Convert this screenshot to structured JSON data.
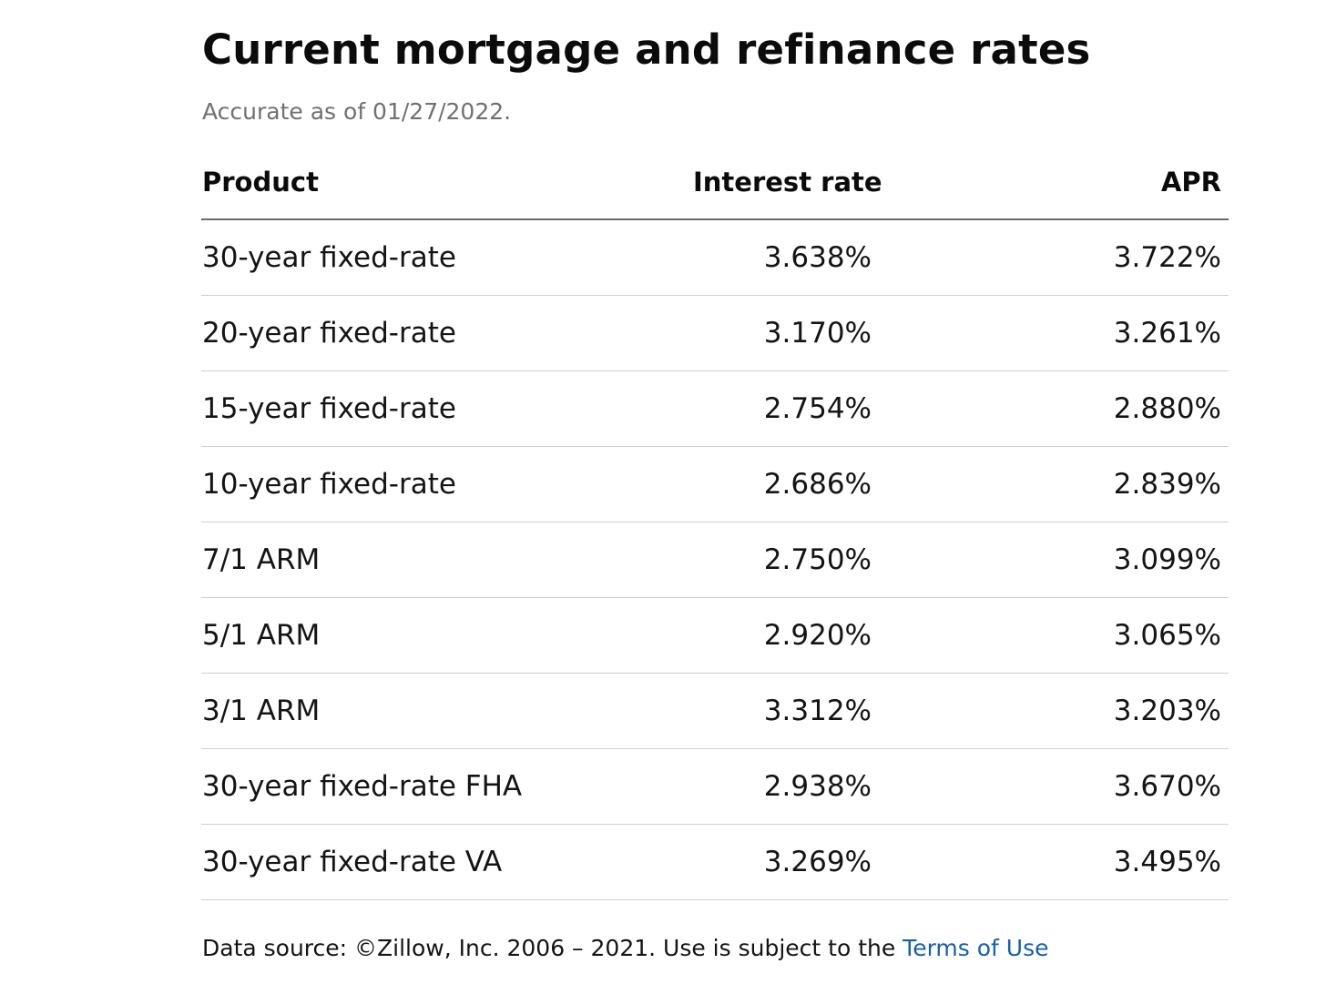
{
  "page": {
    "title": "Current mortgage and refinance rates",
    "subtitle": "Accurate as of 01/27/2022."
  },
  "table": {
    "headers": {
      "product": "Product",
      "interest_rate": "Interest rate",
      "apr": "APR"
    },
    "rows": [
      {
        "product": "30-year fixed-rate",
        "interest_rate": "3.638%",
        "apr": "3.722%"
      },
      {
        "product": "20-year fixed-rate",
        "interest_rate": "3.170%",
        "apr": "3.261%"
      },
      {
        "product": "15-year fixed-rate",
        "interest_rate": "2.754%",
        "apr": "2.880%"
      },
      {
        "product": "10-year fixed-rate",
        "interest_rate": "2.686%",
        "apr": "2.839%"
      },
      {
        "product": "7/1 ARM",
        "interest_rate": "2.750%",
        "apr": "3.099%"
      },
      {
        "product": "5/1 ARM",
        "interest_rate": "2.920%",
        "apr": "3.065%"
      },
      {
        "product": "3/1 ARM",
        "interest_rate": "3.312%",
        "apr": "3.203%"
      },
      {
        "product": "30-year fixed-rate FHA",
        "interest_rate": "2.938%",
        "apr": "3.670%"
      },
      {
        "product": "30-year fixed-rate VA",
        "interest_rate": "3.269%",
        "apr": "3.495%"
      }
    ]
  },
  "footer": {
    "text": "Data source: ©Zillow, Inc. 2006 – 2021. Use is subject to the ",
    "link_label": "Terms of Use"
  },
  "colors": {
    "text": "#141414",
    "subtitle": "#707070",
    "link": "#1a5fa6",
    "header_rule": "#6a6a6a",
    "row_rule": "#cfcfcf"
  }
}
